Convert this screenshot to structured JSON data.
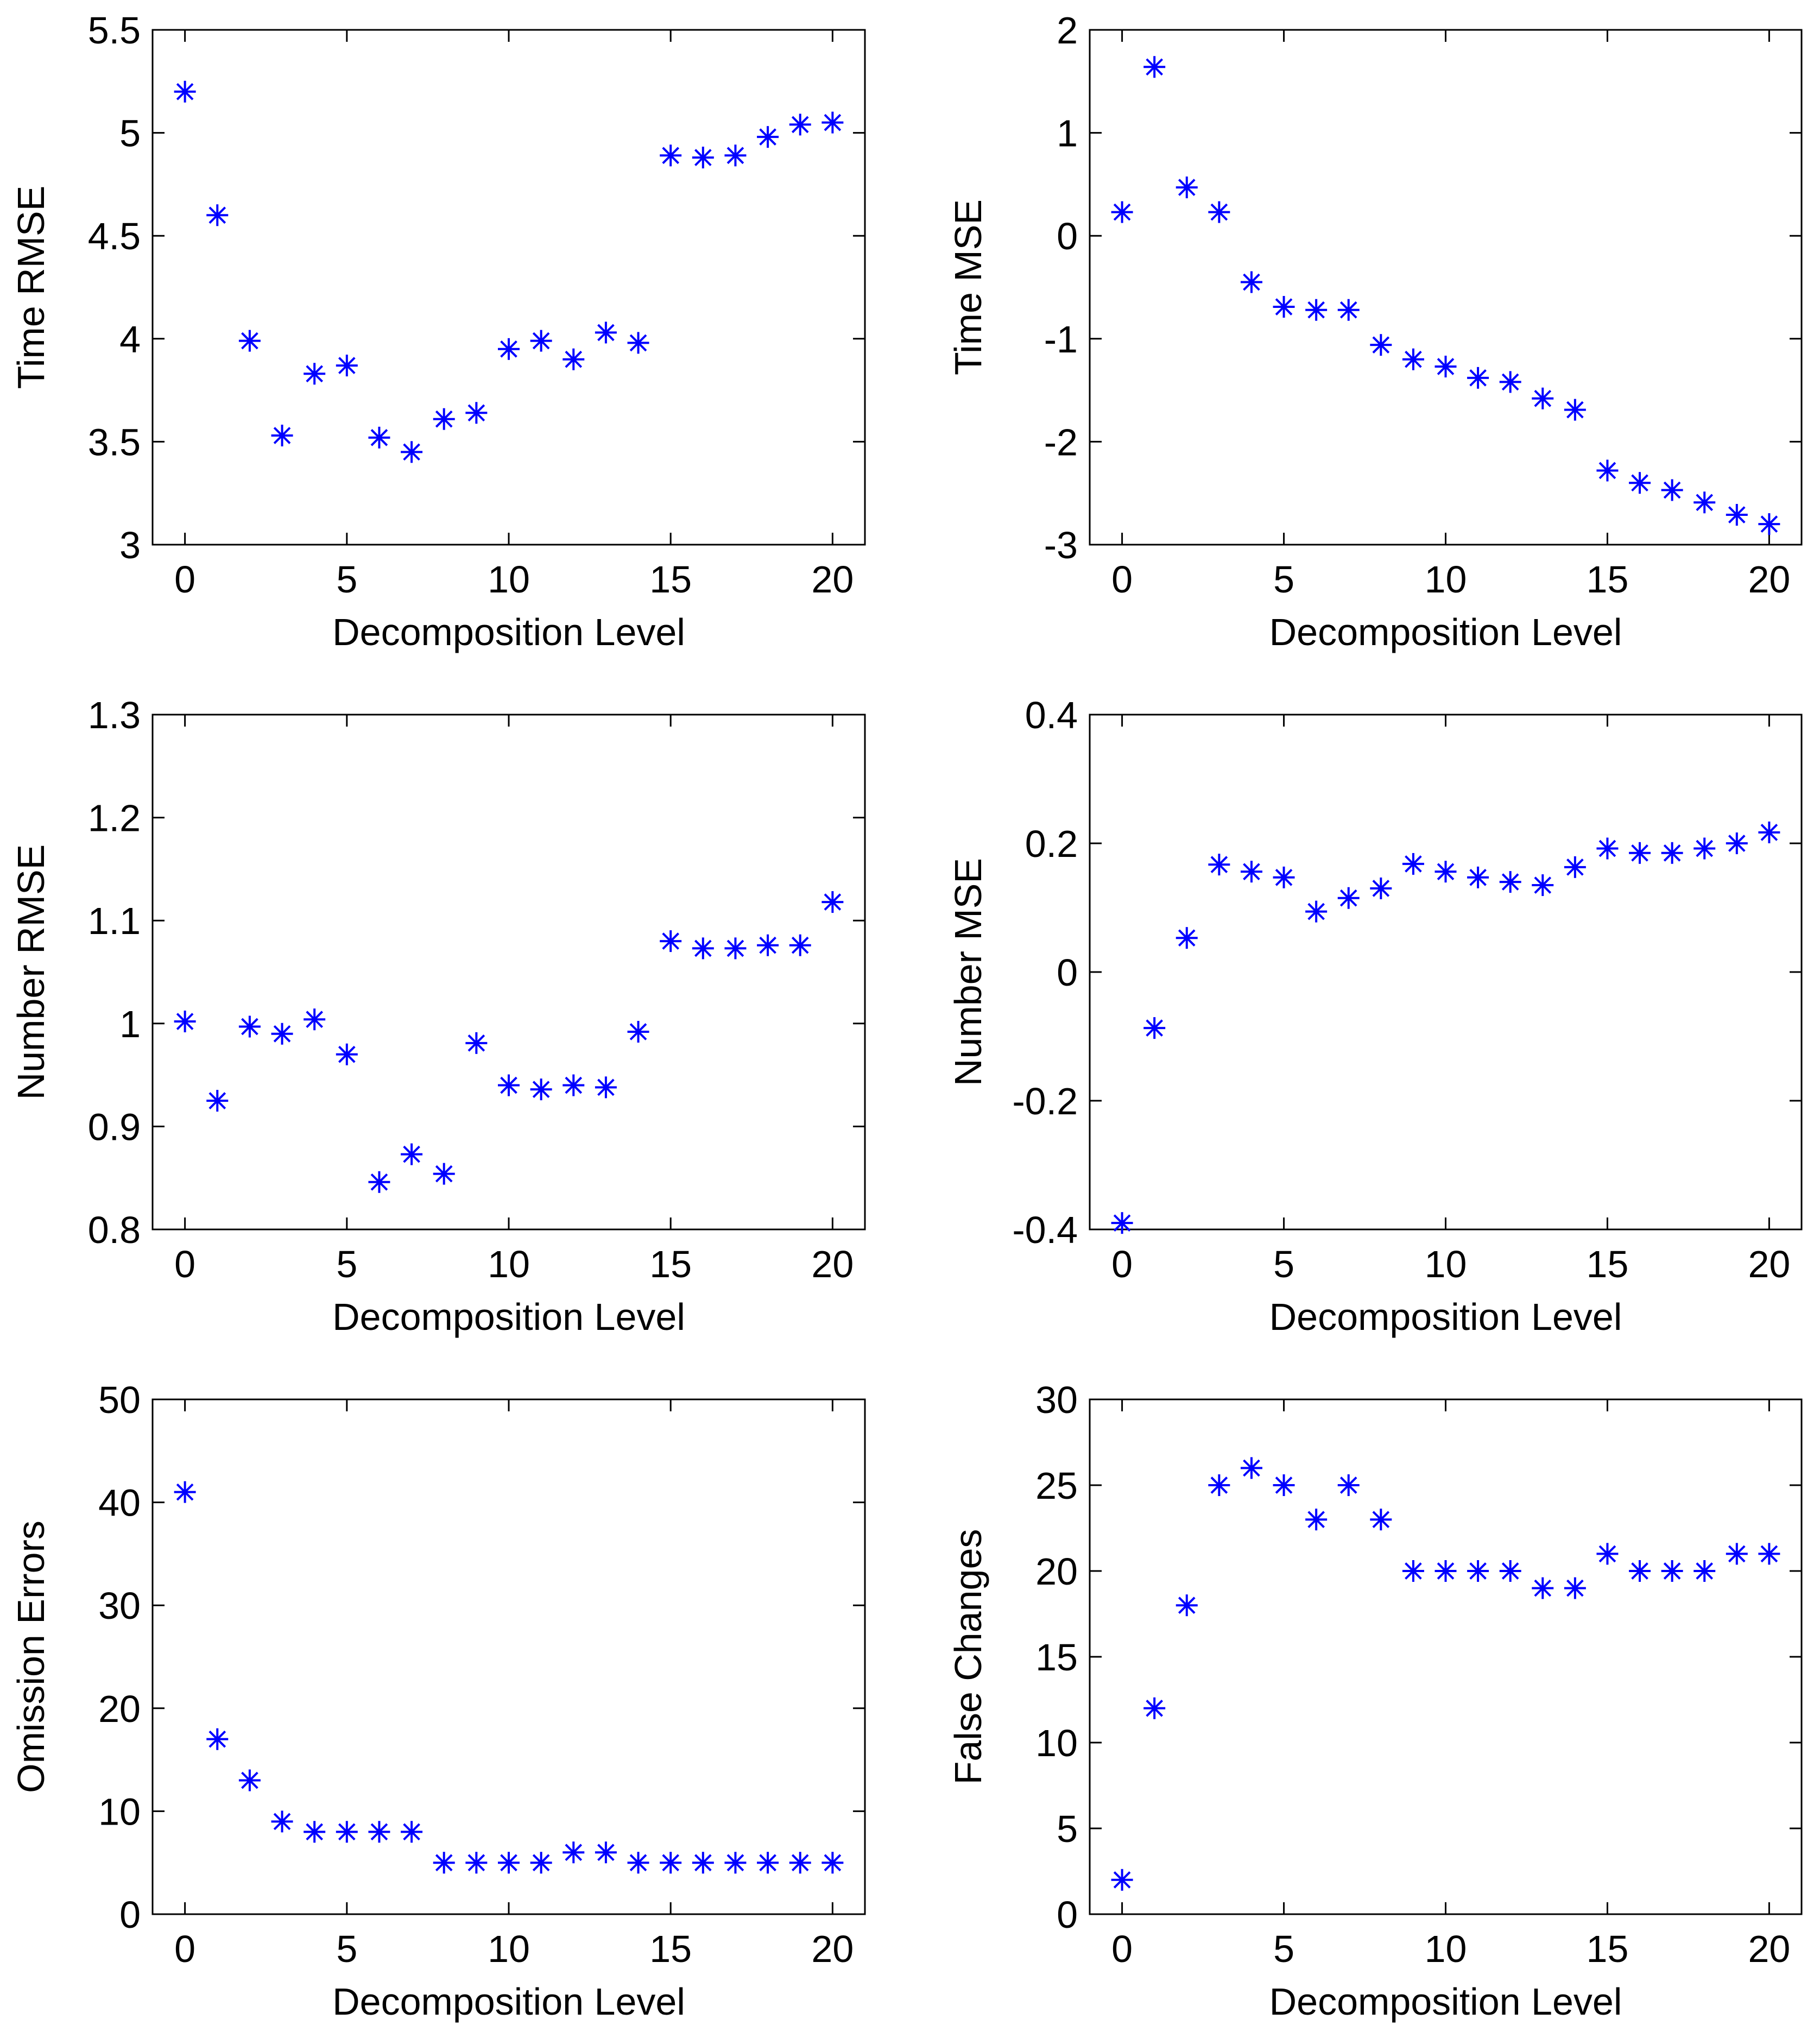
{
  "figure": {
    "marker": "asterisk",
    "marker_color": "#0000ff",
    "axis_color": "#000000",
    "background": "#ffffff"
  },
  "chart_data": [
    {
      "type": "scatter",
      "title": "",
      "xlabel": "Decomposition Level",
      "ylabel": "Time RMSE",
      "xlim": [
        -1,
        21
      ],
      "ylim": [
        3,
        5.5
      ],
      "xticks": [
        0,
        5,
        10,
        15,
        20
      ],
      "xtick_labels": [
        "0",
        "5",
        "10",
        "15",
        "20"
      ],
      "yticks": [
        3,
        3.5,
        4,
        4.5,
        5,
        5.5
      ],
      "ytick_labels": [
        "3",
        "3.5",
        "4",
        "4.5",
        "5",
        "5.5"
      ],
      "x": [
        0,
        1,
        2,
        3,
        4,
        5,
        6,
        7,
        8,
        9,
        10,
        11,
        12,
        13,
        14,
        15,
        16,
        17,
        18,
        19,
        20
      ],
      "y": [
        5.2,
        4.6,
        3.99,
        3.53,
        3.83,
        3.87,
        3.52,
        3.45,
        3.61,
        3.64,
        3.95,
        3.99,
        3.9,
        4.03,
        3.98,
        4.89,
        4.88,
        4.89,
        4.98,
        5.04,
        5.05
      ]
    },
    {
      "type": "scatter",
      "title": "",
      "xlabel": "Decomposition Level",
      "ylabel": "Time MSE",
      "xlim": [
        -1,
        21
      ],
      "ylim": [
        -3,
        2
      ],
      "xticks": [
        0,
        5,
        10,
        15,
        20
      ],
      "xtick_labels": [
        "0",
        "5",
        "10",
        "15",
        "20"
      ],
      "yticks": [
        -3,
        -2,
        -1,
        0,
        1,
        2
      ],
      "ytick_labels": [
        "-3",
        "-2",
        "-1",
        "0",
        "1",
        "2"
      ],
      "x": [
        0,
        1,
        2,
        3,
        4,
        5,
        6,
        7,
        8,
        9,
        10,
        11,
        12,
        13,
        14,
        15,
        16,
        17,
        18,
        19,
        20
      ],
      "y": [
        0.23,
        1.64,
        0.47,
        0.23,
        -0.45,
        -0.69,
        -0.72,
        -0.72,
        -1.06,
        -1.2,
        -1.27,
        -1.38,
        -1.42,
        -1.58,
        -1.69,
        -2.28,
        -2.4,
        -2.47,
        -2.59,
        -2.71,
        -2.8
      ]
    },
    {
      "type": "scatter",
      "title": "",
      "xlabel": "Decomposition Level",
      "ylabel": "Number RMSE",
      "xlim": [
        -1,
        21
      ],
      "ylim": [
        0.8,
        1.3
      ],
      "xticks": [
        0,
        5,
        10,
        15,
        20
      ],
      "xtick_labels": [
        "0",
        "5",
        "10",
        "15",
        "20"
      ],
      "yticks": [
        0.8,
        0.9,
        1.0,
        1.1,
        1.2,
        1.3
      ],
      "ytick_labels": [
        "0.8",
        "0.9",
        "1",
        "1.1",
        "1.2",
        "1.3"
      ],
      "x": [
        0,
        1,
        2,
        3,
        4,
        5,
        6,
        7,
        8,
        9,
        10,
        11,
        12,
        13,
        14,
        15,
        16,
        17,
        18,
        19,
        20
      ],
      "y": [
        1.002,
        0.925,
        0.997,
        0.99,
        1.004,
        0.97,
        0.846,
        0.873,
        0.854,
        0.981,
        0.94,
        0.936,
        0.94,
        0.938,
        0.992,
        1.08,
        1.073,
        1.073,
        1.076,
        1.076,
        1.118
      ]
    },
    {
      "type": "scatter",
      "title": "",
      "xlabel": "Decomposition Level",
      "ylabel": "Number MSE",
      "xlim": [
        -1,
        21
      ],
      "ylim": [
        -0.4,
        0.4
      ],
      "xticks": [
        0,
        5,
        10,
        15,
        20
      ],
      "xtick_labels": [
        "0",
        "5",
        "10",
        "15",
        "20"
      ],
      "yticks": [
        -0.4,
        -0.2,
        0,
        0.2,
        0.4
      ],
      "ytick_labels": [
        "-0.4",
        "-0.2",
        "0",
        "0.2",
        "0.4"
      ],
      "x": [
        0,
        1,
        2,
        3,
        4,
        5,
        6,
        7,
        8,
        9,
        10,
        11,
        12,
        13,
        14,
        15,
        16,
        17,
        18,
        19,
        20
      ],
      "y": [
        -0.39,
        -0.087,
        0.053,
        0.167,
        0.156,
        0.147,
        0.094,
        0.115,
        0.13,
        0.168,
        0.156,
        0.147,
        0.14,
        0.135,
        0.163,
        0.192,
        0.185,
        0.185,
        0.192,
        0.2,
        0.217
      ]
    },
    {
      "type": "scatter",
      "title": "",
      "xlabel": "Decomposition Level",
      "ylabel": "Omission Errors",
      "xlim": [
        -1,
        21
      ],
      "ylim": [
        0,
        50
      ],
      "xticks": [
        0,
        5,
        10,
        15,
        20
      ],
      "xtick_labels": [
        "0",
        "5",
        "10",
        "15",
        "20"
      ],
      "yticks": [
        0,
        10,
        20,
        30,
        40,
        50
      ],
      "ytick_labels": [
        "0",
        "10",
        "20",
        "30",
        "40",
        "50"
      ],
      "x": [
        0,
        1,
        2,
        3,
        4,
        5,
        6,
        7,
        8,
        9,
        10,
        11,
        12,
        13,
        14,
        15,
        16,
        17,
        18,
        19,
        20
      ],
      "y": [
        41,
        17,
        13,
        9,
        8,
        8,
        8,
        8,
        5,
        5,
        5,
        5,
        6,
        6,
        5,
        5,
        5,
        5,
        5,
        5,
        5
      ]
    },
    {
      "type": "scatter",
      "title": "",
      "xlabel": "Decomposition Level",
      "ylabel": "False Changes",
      "xlim": [
        -1,
        21
      ],
      "ylim": [
        0,
        30
      ],
      "xticks": [
        0,
        5,
        10,
        15,
        20
      ],
      "xtick_labels": [
        "0",
        "5",
        "10",
        "15",
        "20"
      ],
      "yticks": [
        0,
        5,
        10,
        15,
        20,
        25,
        30
      ],
      "ytick_labels": [
        "0",
        "5",
        "10",
        "15",
        "20",
        "25",
        "30"
      ],
      "x": [
        0,
        1,
        2,
        3,
        4,
        5,
        6,
        7,
        8,
        9,
        10,
        11,
        12,
        13,
        14,
        15,
        16,
        17,
        18,
        19,
        20
      ],
      "y": [
        2,
        12,
        18,
        25,
        26,
        25,
        23,
        25,
        23,
        20,
        20,
        20,
        20,
        19,
        19,
        21,
        20,
        20,
        20,
        21,
        21
      ]
    }
  ]
}
